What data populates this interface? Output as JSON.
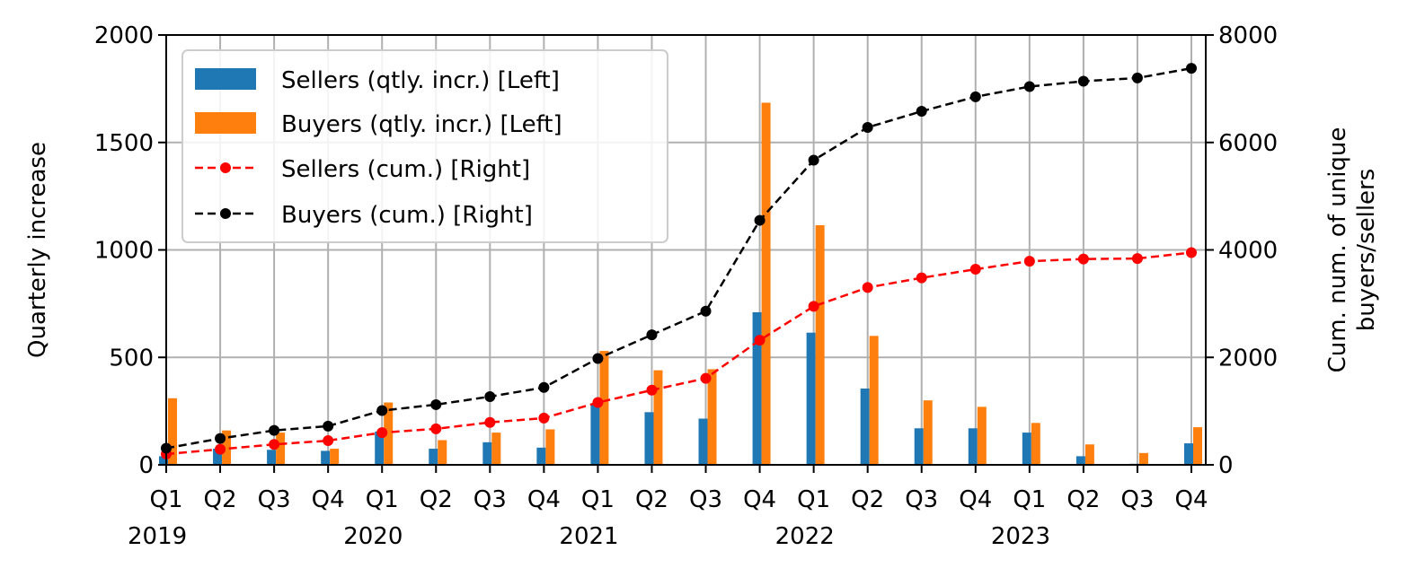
{
  "chart_data": {
    "type": "bar+line",
    "categories": [
      "Q1",
      "Q2",
      "Q3",
      "Q4",
      "Q1",
      "Q2",
      "Q3",
      "Q4",
      "Q1",
      "Q2",
      "Q3",
      "Q4",
      "Q1",
      "Q2",
      "Q3",
      "Q4",
      "Q1",
      "Q2",
      "Q3",
      "Q4"
    ],
    "year_labels": [
      {
        "label": "2019",
        "index": 0
      },
      {
        "label": "2020",
        "index": 4
      },
      {
        "label": "2021",
        "index": 8
      },
      {
        "label": "2022",
        "index": 12
      },
      {
        "label": "2023",
        "index": 16
      }
    ],
    "ylabel_left": "Quarterly increase",
    "ylabel_right": [
      "Cum. num. of unique",
      "buyers/sellers"
    ],
    "ylim_left": [
      0,
      2000
    ],
    "ylim_right": [
      0,
      8000
    ],
    "yticks_left": [
      "0",
      "500",
      "1000",
      "1500",
      "2000"
    ],
    "yticks_right": [
      "0",
      "2000",
      "4000",
      "6000",
      "8000"
    ],
    "grid": true,
    "legend_position": "top-left",
    "series": [
      {
        "name": "Sellers (qtly. incr.) [Left]",
        "type": "bar",
        "axis": "left",
        "color": "#1f77b4",
        "values": [
          40,
          75,
          70,
          65,
          155,
          75,
          105,
          80,
          285,
          245,
          215,
          710,
          615,
          355,
          170,
          170,
          150,
          40,
          5,
          100
        ]
      },
      {
        "name": "Buyers (qtly. incr.) [Left]",
        "type": "bar",
        "axis": "left",
        "color": "#ff7f0e",
        "values": [
          310,
          160,
          150,
          75,
          290,
          115,
          150,
          165,
          530,
          440,
          445,
          1685,
          1115,
          600,
          300,
          270,
          195,
          95,
          55,
          175
        ]
      },
      {
        "name": "Sellers (cum.) [Right]",
        "type": "line",
        "axis": "right",
        "color": "#ff0000",
        "values": [
          200,
          290,
          380,
          450,
          600,
          670,
          790,
          870,
          1160,
          1390,
          1610,
          2320,
          2950,
          3300,
          3480,
          3640,
          3790,
          3830,
          3840,
          3950
        ]
      },
      {
        "name": "Buyers (cum.) [Right]",
        "type": "line",
        "axis": "right",
        "color": "#000000",
        "values": [
          310,
          490,
          640,
          720,
          1010,
          1120,
          1270,
          1440,
          1980,
          2420,
          2860,
          4550,
          5670,
          6280,
          6580,
          6850,
          7040,
          7140,
          7200,
          7380
        ]
      }
    ]
  }
}
